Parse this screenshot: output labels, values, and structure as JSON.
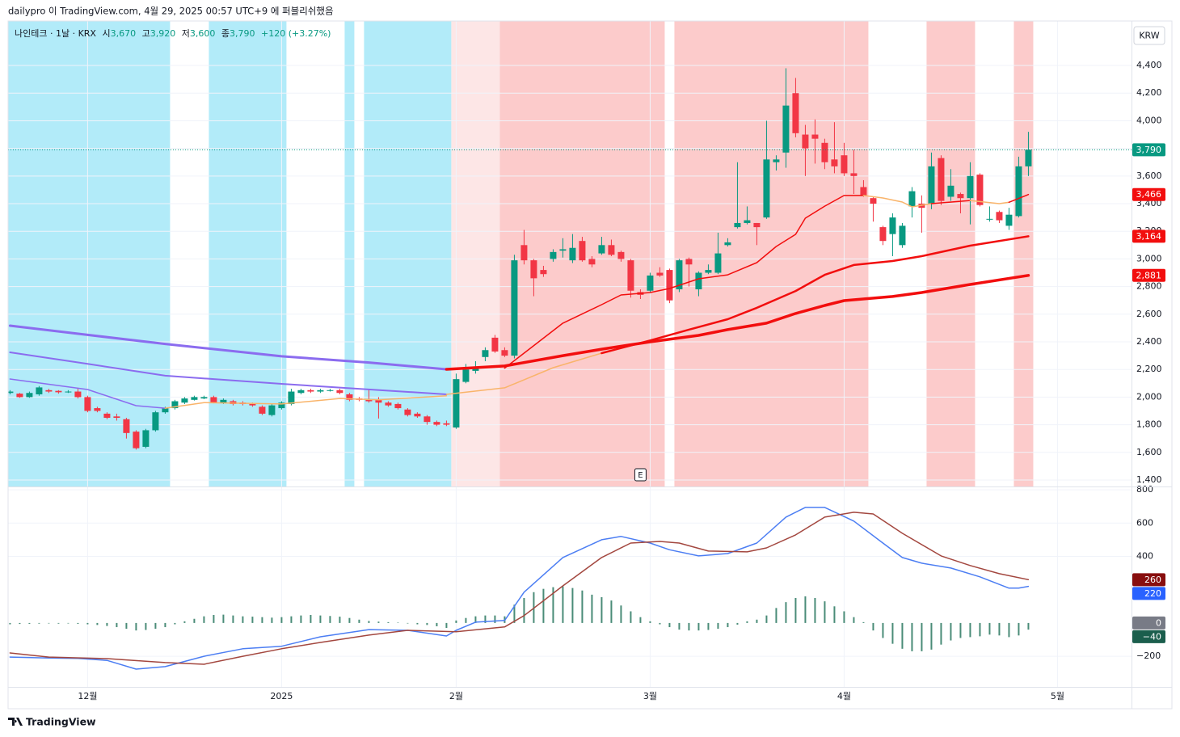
{
  "header": {
    "published": "dailypro 이 TradingView.com, 4월 29, 2025 00:57 UTC+9 에 퍼블리쉬했음"
  },
  "footer": {
    "brand": "TradingView"
  },
  "ohlc_status": {
    "symbol": "나인테크 · 1날 · KRX",
    "open_label": "시",
    "open": "3,670",
    "high_label": "고",
    "high": "3,920",
    "low_label": "저",
    "low": "3,600",
    "close_label": "종",
    "close": "3,790",
    "change": "+120 (+3.27%)"
  },
  "chart_data": [
    {
      "type": "candlestick",
      "currency": "KRW",
      "up_color": "#089981",
      "down_color": "#f23645",
      "open": [
        2030,
        2025,
        2000,
        2020,
        2050,
        2045,
        2040,
        2040,
        2000,
        1920,
        1880,
        1860,
        1840,
        1750,
        1640,
        1760,
        1890,
        1920,
        1960,
        1980,
        1990,
        2000,
        1960,
        1970,
        1960,
        1950,
        1930,
        1870,
        1920,
        1950,
        2030,
        2050,
        2040,
        2050,
        2050,
        2020,
        1990,
        1980,
        1980,
        1960,
        1950,
        1910,
        1880,
        1860,
        1820,
        1810,
        1780,
        2110,
        2190,
        2290,
        2430,
        2340,
        2300,
        3100,
        2990,
        2920,
        3000,
        3060,
        2990,
        3130,
        3000,
        3040,
        3100,
        3050,
        2990,
        2760,
        2770,
        2900,
        2920,
        2780,
        3000,
        2780,
        2900,
        2900,
        3100,
        3230,
        3260,
        3260,
        3300,
        3700,
        3770,
        4200,
        3900,
        3900,
        3840,
        3720,
        3750,
        3620,
        3520,
        3440,
        3230,
        3180,
        3100,
        3380,
        3400,
        3400,
        3730,
        3450,
        3470,
        3440,
        3610,
        3290,
        3340,
        3240,
        3310,
        3670
      ],
      "high": [
        2050,
        2030,
        2040,
        2080,
        2060,
        2050,
        2050,
        2060,
        2010,
        1930,
        1890,
        1880,
        1850,
        1760,
        1770,
        1900,
        1930,
        1980,
        2000,
        2010,
        2010,
        2010,
        1990,
        1980,
        1970,
        1960,
        1940,
        1950,
        1970,
        2060,
        2060,
        2060,
        2060,
        2060,
        2060,
        2030,
        2000,
        2060,
        2000,
        1970,
        1960,
        1920,
        1890,
        1870,
        1830,
        1830,
        2170,
        2240,
        2260,
        2360,
        2450,
        2360,
        3030,
        3210,
        3000,
        2950,
        3070,
        3150,
        3180,
        3160,
        3020,
        3160,
        3140,
        3060,
        3000,
        2780,
        2900,
        2940,
        2930,
        3000,
        3010,
        2910,
        2960,
        3190,
        3150,
        3700,
        3380,
        3260,
        4000,
        3750,
        4380,
        4310,
        3970,
        4010,
        3870,
        3990,
        3840,
        3790,
        3570,
        3450,
        3240,
        3330,
        3260,
        3520,
        3460,
        3770,
        3750,
        3650,
        3480,
        3700,
        3620,
        3380,
        3350,
        3370,
        3740,
        3920
      ],
      "low": [
        2020,
        1995,
        1995,
        2010,
        2030,
        2025,
        2030,
        1990,
        1890,
        1890,
        1840,
        1830,
        1700,
        1620,
        1630,
        1750,
        1880,
        1910,
        1950,
        1975,
        1985,
        1955,
        1950,
        1940,
        1940,
        1930,
        1870,
        1860,
        1910,
        1940,
        2020,
        2030,
        2030,
        2040,
        2020,
        1970,
        1970,
        1960,
        1845,
        1930,
        1910,
        1860,
        1850,
        1800,
        1790,
        1790,
        1770,
        2100,
        2170,
        2260,
        2320,
        2290,
        2280,
        2960,
        2730,
        2870,
        2980,
        3010,
        2970,
        2980,
        2940,
        3030,
        3020,
        2980,
        2720,
        2710,
        2760,
        2870,
        2680,
        2760,
        2800,
        2730,
        2890,
        2890,
        3090,
        3220,
        3250,
        3100,
        3290,
        3640,
        3660,
        3880,
        3600,
        3690,
        3650,
        3620,
        3600,
        3470,
        3450,
        3270,
        3100,
        3020,
        3080,
        3300,
        3190,
        3360,
        3390,
        3420,
        3330,
        3250,
        3380,
        3270,
        3260,
        3210,
        3300,
        3600
      ],
      "close": [
        2040,
        2000,
        2030,
        2070,
        2040,
        2035,
        2040,
        2000,
        1900,
        1900,
        1850,
        1850,
        1740,
        1630,
        1760,
        1890,
        1920,
        1970,
        1990,
        2000,
        2000,
        1960,
        1980,
        1950,
        1950,
        1940,
        1880,
        1940,
        1960,
        2040,
        2050,
        2040,
        2050,
        2050,
        2030,
        1980,
        1980,
        1970,
        1960,
        1940,
        1920,
        1870,
        1860,
        1820,
        1800,
        1800,
        2130,
        2200,
        2210,
        2340,
        2330,
        2300,
        2990,
        2990,
        2860,
        2890,
        3050,
        3070,
        3080,
        2990,
        2960,
        3100,
        3030,
        3000,
        2770,
        2740,
        2880,
        2880,
        2700,
        2990,
        2960,
        2900,
        2920,
        3040,
        3120,
        3260,
        3280,
        3230,
        3720,
        3720,
        4110,
        3910,
        3800,
        3870,
        3700,
        3670,
        3620,
        3600,
        3460,
        3400,
        3130,
        3300,
        3240,
        3490,
        3370,
        3670,
        3420,
        3530,
        3440,
        3600,
        3390,
        3290,
        3280,
        3320,
        3670,
        3790
      ],
      "xlim": [
        -0.2,
        115.63
      ],
      "ylim": [
        1353,
        4722
      ],
      "yticks": [
        {
          "value": 1400,
          "label": "1,400"
        },
        {
          "value": 1600,
          "label": "1,600"
        },
        {
          "value": 1800,
          "label": "1,800"
        },
        {
          "value": 2000,
          "label": "2,000"
        },
        {
          "value": 2200,
          "label": "2,200"
        },
        {
          "value": 2400,
          "label": "2,400"
        },
        {
          "value": 2600,
          "label": "2,600"
        },
        {
          "value": 2800,
          "label": "2,800"
        },
        {
          "value": 3000,
          "label": "3,000"
        },
        {
          "value": 3200,
          "label": "3,200"
        },
        {
          "value": 3400,
          "label": "3,400"
        },
        {
          "value": 3600,
          "label": "3,600"
        },
        {
          "value": 3800,
          "label": "3,800"
        },
        {
          "value": 4000,
          "label": "4,000"
        },
        {
          "value": 4200,
          "label": "4,200"
        },
        {
          "value": 4400,
          "label": "4,400"
        }
      ],
      "grid": true,
      "last_price_line": true,
      "regions": [
        {
          "from": 0,
          "to": 16,
          "color": "#b2ebf9"
        },
        {
          "from": 21,
          "to": 28,
          "color": "#b2ebf9"
        },
        {
          "from": 35,
          "to": 35,
          "color": "#b2ebf9"
        },
        {
          "from": 37,
          "to": 45,
          "color": "#b2ebf9"
        },
        {
          "from": 46,
          "to": 50,
          "color": "#fde6e6"
        },
        {
          "from": 51,
          "to": 67,
          "color": "#fccbcb"
        },
        {
          "from": 69,
          "to": 88,
          "color": "#fccbcb"
        },
        {
          "from": 95,
          "to": 99,
          "color": "#fccbcb"
        },
        {
          "from": 104,
          "to": 105,
          "color": "#fccbcb"
        }
      ],
      "lines": [
        {
          "color": "#8b6cef",
          "width": 3,
          "x": [
            0,
            8,
            16,
            28,
            37,
            45
          ],
          "values": [
            2517,
            2450,
            2385,
            2295,
            2250,
            2201
          ]
        },
        {
          "color": "#f20e0e",
          "width": 3.5,
          "x": [
            45,
            51,
            57,
            61,
            66,
            71,
            74,
            78,
            81,
            84,
            86,
            91,
            94,
            99,
            105
          ],
          "values": [
            2201,
            2225,
            2300,
            2347,
            2400,
            2447,
            2488,
            2535,
            2605,
            2663,
            2698,
            2728,
            2757,
            2815,
            2881
          ]
        },
        {
          "color": "#8b6cef",
          "width": 2,
          "x": [
            0,
            8,
            16,
            28,
            45
          ],
          "values": [
            2324,
            2240,
            2155,
            2096,
            2020
          ]
        },
        {
          "color": "#f9b46a",
          "width": 1.5,
          "x": [
            45,
            51,
            56,
            61
          ],
          "values": [
            2020,
            2067,
            2213,
            2318
          ]
        },
        {
          "color": "#f20e0e",
          "width": 2.5,
          "x": [
            61,
            66,
            70,
            74,
            77,
            81,
            84,
            87,
            91,
            94,
            99,
            105
          ],
          "values": [
            2318,
            2410,
            2488,
            2564,
            2646,
            2768,
            2885,
            2956,
            2985,
            3020,
            3096,
            3164
          ]
        },
        {
          "color": "#8b6cef",
          "width": 1.5,
          "x": [
            0,
            8,
            13,
            16
          ],
          "values": [
            2131,
            2055,
            1938,
            1920
          ]
        },
        {
          "color": "#f9b46a",
          "width": 1.5,
          "x": [
            16,
            20,
            28,
            34,
            38,
            45
          ],
          "values": [
            1920,
            1960,
            1950,
            1990,
            1980,
            2010
          ]
        },
        {
          "color": "#f20e0e",
          "width": 1.5,
          "x": [
            51,
            53,
            57,
            61,
            63,
            66,
            68,
            71,
            74,
            77,
            79,
            81,
            82,
            84,
            86,
            88
          ],
          "values": [
            2210,
            2318,
            2535,
            2669,
            2739,
            2757,
            2786,
            2856,
            2885,
            2973,
            3090,
            3178,
            3295,
            3382,
            3459,
            3459
          ]
        },
        {
          "color": "#f9b46a",
          "width": 1.5,
          "x": [
            88,
            90,
            92,
            93,
            95
          ],
          "values": [
            3459,
            3441,
            3412,
            3377,
            3400
          ]
        },
        {
          "color": "#f20e0e",
          "width": 1.5,
          "x": [
            95,
            99
          ],
          "values": [
            3400,
            3423
          ]
        },
        {
          "color": "#f9b46a",
          "width": 1.5,
          "x": [
            99,
            102,
            103
          ],
          "values": [
            3423,
            3400,
            3410
          ]
        },
        {
          "color": "#f20e0e",
          "width": 1.5,
          "x": [
            103,
            105
          ],
          "values": [
            3410,
            3466
          ]
        }
      ],
      "axis_badges": [
        {
          "value": 3790,
          "label": "3,790",
          "color": "#089981"
        },
        {
          "value": 3466,
          "label": "3,466",
          "color": "#f20e0e"
        },
        {
          "value": 3164,
          "label": "3,164",
          "color": "#f20e0e"
        },
        {
          "value": 2881,
          "label": "2,881",
          "color": "#f20e0e"
        }
      ],
      "events": [
        {
          "x": 65,
          "label": "E"
        }
      ]
    },
    {
      "type": "macd",
      "histogram_color": "#4a8c78",
      "histogram": [
        -8,
        -6,
        -5,
        -4,
        -3,
        -4,
        -3,
        -5,
        -8,
        -12,
        -18,
        -25,
        -35,
        -45,
        -42,
        -35,
        -25,
        -8,
        10,
        25,
        40,
        48,
        50,
        45,
        40,
        38,
        35,
        32,
        35,
        40,
        45,
        48,
        45,
        42,
        38,
        30,
        20,
        12,
        8,
        5,
        2,
        -3,
        -8,
        -12,
        -20,
        -30,
        15,
        30,
        40,
        45,
        45,
        40,
        110,
        150,
        185,
        205,
        215,
        220,
        210,
        195,
        170,
        155,
        135,
        105,
        70,
        35,
        10,
        -8,
        -25,
        -40,
        -45,
        -45,
        -42,
        -35,
        -25,
        -10,
        10,
        20,
        45,
        90,
        125,
        150,
        160,
        150,
        130,
        100,
        70,
        35,
        5,
        -45,
        -90,
        -125,
        -155,
        -170,
        -170,
        -160,
        -130,
        -105,
        -90,
        -85,
        -80,
        -70,
        -75,
        -85,
        -75,
        -40
      ],
      "series": [
        {
          "color": "#4c7ef3",
          "x": [
            0,
            4,
            7,
            10,
            13,
            16,
            20,
            24,
            28,
            32,
            37,
            41,
            45,
            46,
            48,
            51,
            53,
            57,
            61,
            63,
            66,
            68,
            71,
            74,
            77,
            80,
            82,
            84,
            87,
            90,
            92,
            94,
            97,
            100,
            103,
            104,
            105
          ],
          "values": [
            -205,
            -210,
            -213,
            -225,
            -277,
            -262,
            -200,
            -155,
            -140,
            -83,
            -40,
            -44,
            -78,
            -44,
            5,
            15,
            185,
            393,
            500,
            520,
            480,
            440,
            403,
            417,
            480,
            636,
            694,
            694,
            612,
            480,
            393,
            359,
            330,
            277,
            209,
            209,
            220
          ]
        },
        {
          "color": "#a3473f",
          "x": [
            0,
            4,
            10,
            16,
            20,
            24,
            28,
            32,
            37,
            41,
            46,
            51,
            53,
            57,
            61,
            64,
            67,
            69,
            72,
            76,
            78,
            81,
            84,
            87,
            89,
            92,
            96,
            99,
            102,
            105
          ],
          "values": [
            -180,
            -205,
            -214,
            -238,
            -248,
            -200,
            -155,
            -117,
            -73,
            -44,
            -53,
            -24,
            44,
            223,
            393,
            480,
            490,
            480,
            432,
            427,
            451,
            529,
            636,
            665,
            655,
            539,
            403,
            345,
            296,
            260
          ]
        }
      ],
      "xlim": [
        -0.2,
        115.63
      ],
      "xticks": [
        {
          "value": 8,
          "label": "12월"
        },
        {
          "value": 28,
          "label": "2025"
        },
        {
          "value": 46,
          "label": "2월"
        },
        {
          "value": 66,
          "label": "3월"
        },
        {
          "value": 86,
          "label": "4월"
        },
        {
          "value": 108,
          "label": "5월"
        }
      ],
      "ylim": [
        -384,
        815
      ],
      "yticks": [
        800,
        600,
        400,
        {
          "value": -200,
          "label": "−200"
        }
      ],
      "grid": true,
      "axis_badges": [
        {
          "value": 260,
          "label": "260",
          "color": "#880e0e"
        },
        {
          "value": 220,
          "label": "220",
          "color": "#2962ff"
        },
        {
          "value": 0,
          "label": "0",
          "color": "#787b86"
        },
        {
          "value": -40,
          "label": "−40",
          "color": "#1b5e4d"
        }
      ]
    }
  ]
}
